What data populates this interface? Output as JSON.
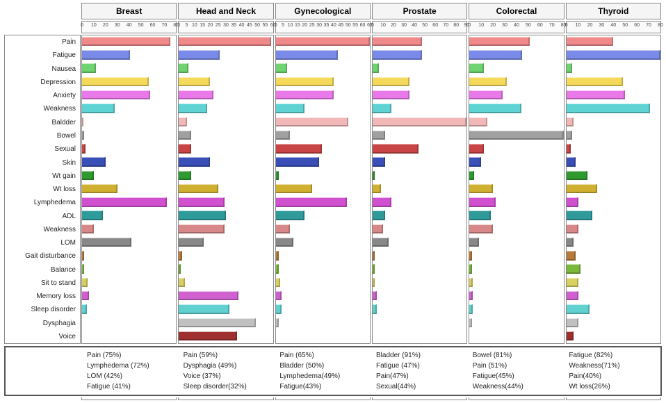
{
  "panels": [
    "Breast",
    "Head and Neck",
    "Gynecological",
    "Prostate",
    "Colorectal",
    "Thyroid"
  ],
  "categories": [
    "Pain",
    "Fatigue",
    "Nausea",
    "Depression",
    "Anxiety",
    "Weakness",
    "Baldder",
    "Bowel",
    "Sexual",
    "Skin",
    "Wt gain",
    "Wt loss",
    "Lymphedema",
    "ADL",
    "Weakness",
    "LOM",
    "Gait disturbance",
    "Balance",
    "Sit to stand",
    "Memory loss",
    "Sleep disorder",
    "Dysphagia",
    "Voice"
  ],
  "colors": {
    "Pain": "#f08a8a",
    "Fatigue": "#7a8ae8",
    "Nausea": "#6fd36f",
    "Depression": "#f5d95a",
    "Anxiety": "#e978e9",
    "Weakness": "#5fd3d3",
    "Baldder": "#f2b8b8",
    "Bowel": "#a0a0a0",
    "Sexual": "#c94444",
    "Skin": "#3a4fb8",
    "Wt gain": "#2f9a2f",
    "Wt loss": "#d0b030",
    "Lymphedema": "#d050d0",
    "ADL": "#2f9a9a",
    "Weakness2": "#d88888",
    "LOM": "#888888",
    "Gait disturbance": "#b87a3a",
    "Balance": "#7ab83a",
    "Sit to stand": "#d8d060",
    "Memory loss": "#d060d0",
    "Sleep disorder": "#60d0d0",
    "Dysphagia": "#c0c0c0",
    "Voice": "#a03030"
  },
  "axes": [
    {
      "max": 80,
      "ticks": [
        0,
        10,
        20,
        30,
        40,
        50,
        60,
        70,
        80
      ]
    },
    {
      "max": 60,
      "ticks": [
        0,
        5,
        10,
        15,
        20,
        25,
        30,
        35,
        40,
        45,
        50,
        55,
        60
      ]
    },
    {
      "max": 65,
      "ticks": [
        0,
        5,
        10,
        15,
        20,
        25,
        30,
        35,
        40,
        45,
        50,
        55,
        60,
        65
      ]
    },
    {
      "max": 90,
      "ticks": [
        0,
        10,
        20,
        30,
        40,
        50,
        60,
        70,
        80,
        90
      ]
    },
    {
      "max": 80,
      "ticks": [
        0,
        10,
        20,
        30,
        40,
        50,
        60,
        70,
        80
      ]
    },
    {
      "max": 80,
      "ticks": [
        0,
        10,
        20,
        30,
        40,
        50,
        60,
        70,
        80
      ]
    }
  ],
  "data": {
    "Breast": [
      75,
      41,
      12,
      57,
      58,
      28,
      1,
      2,
      3,
      20,
      10,
      30,
      72,
      18,
      10,
      42,
      2,
      2,
      5,
      6,
      4,
      0,
      0
    ],
    "Head and Neck": [
      59,
      26,
      6,
      20,
      22,
      18,
      5,
      8,
      8,
      20,
      8,
      25,
      29,
      30,
      29,
      16,
      2,
      1,
      4,
      38,
      32,
      49,
      37
    ],
    "Gynecological": [
      65,
      43,
      8,
      40,
      40,
      20,
      50,
      10,
      32,
      30,
      2,
      25,
      49,
      20,
      10,
      12,
      2,
      2,
      3,
      4,
      4,
      2,
      0
    ],
    "Prostate": [
      47,
      47,
      6,
      35,
      35,
      18,
      91,
      12,
      44,
      12,
      2,
      8,
      18,
      12,
      10,
      15,
      2,
      2,
      2,
      4,
      4,
      0,
      0
    ],
    "Colorectal": [
      51,
      45,
      12,
      32,
      28,
      44,
      15,
      81,
      12,
      10,
      4,
      20,
      22,
      18,
      20,
      8,
      2,
      2,
      3,
      3,
      3,
      2,
      0
    ],
    "Thyroid": [
      40,
      82,
      5,
      48,
      50,
      71,
      6,
      5,
      4,
      8,
      18,
      26,
      10,
      22,
      10,
      6,
      8,
      12,
      10,
      10,
      20,
      10,
      6
    ]
  },
  "summary": {
    "Breast": [
      "Pain (75%)",
      "Lymphedema (72%)",
      "LOM (42%)",
      "Fatigue (41%)"
    ],
    "Head and Neck": [
      "Pain (59%)",
      "Dysphagia (49%)",
      "Voice (37%)",
      "Sleep disorder(32%)"
    ],
    "Gynecological": [
      "Pain (65%)",
      "Bladder (50%)",
      "Lymphedema(49%)",
      "Fatigue(43%)"
    ],
    "Prostate": [
      "Bladder (91%)",
      "Fatigue (47%)",
      "Pain(47%)",
      "Sexual(44%)"
    ],
    "Colorectal": [
      "Bowel (81%)",
      "Pain (51%)",
      "Fatigue(45%)",
      "Weakness(44%)"
    ],
    "Thyroid": [
      "Fatigue (82%)",
      "Weakness(71%)",
      "Pain(40%)",
      "Wt loss(26%)"
    ]
  },
  "style": {
    "background": "#ffffff",
    "panel_border": "#888888",
    "header_bg": "#f5f5f5",
    "label_fontsize": 10,
    "header_fontsize": 12,
    "tick_fontsize": 7,
    "summary_fontsize": 10
  }
}
